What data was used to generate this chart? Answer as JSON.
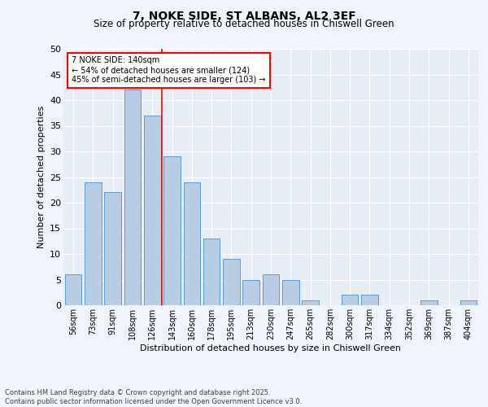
{
  "title": "7, NOKE SIDE, ST ALBANS, AL2 3EF",
  "subtitle": "Size of property relative to detached houses in Chiswell Green",
  "xlabel": "Distribution of detached houses by size in Chiswell Green",
  "ylabel": "Number of detached properties",
  "categories": [
    "56sqm",
    "73sqm",
    "91sqm",
    "108sqm",
    "126sqm",
    "143sqm",
    "160sqm",
    "178sqm",
    "195sqm",
    "213sqm",
    "230sqm",
    "247sqm",
    "265sqm",
    "282sqm",
    "300sqm",
    "317sqm",
    "334sqm",
    "352sqm",
    "369sqm",
    "387sqm",
    "404sqm"
  ],
  "values": [
    6,
    24,
    22,
    42,
    37,
    29,
    24,
    13,
    9,
    5,
    6,
    5,
    1,
    0,
    2,
    2,
    0,
    0,
    1,
    0,
    1
  ],
  "bar_color": "#b8cce4",
  "bar_edge_color": "#5b9bd5",
  "vline_index": 5,
  "vline_color": "red",
  "annotation_title": "7 NOKE SIDE: 140sqm",
  "annotation_line1": "← 54% of detached houses are smaller (124)",
  "annotation_line2": "45% of semi-detached houses are larger (103) →",
  "footer1": "Contains HM Land Registry data © Crown copyright and database right 2025.",
  "footer2": "Contains public sector information licensed under the Open Government Licence v3.0.",
  "ylim": [
    0,
    50
  ],
  "yticks": [
    0,
    5,
    10,
    15,
    20,
    25,
    30,
    35,
    40,
    45,
    50
  ],
  "fig_bg_color": "#f0f4fb",
  "plot_bg_color": "#e8eef6"
}
